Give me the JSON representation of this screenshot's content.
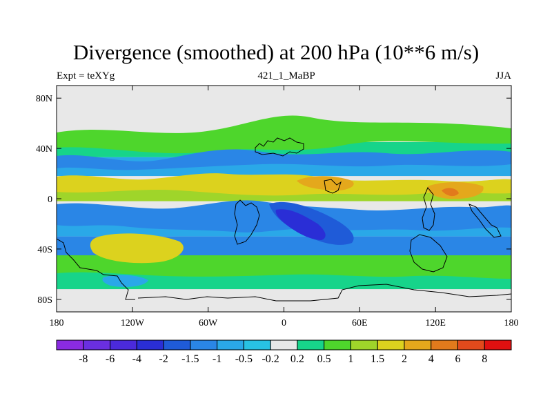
{
  "title": "Divergence (smoothed) at 200 hPa (10**6 m/s)",
  "subtitle_left": "Expt = teXYg",
  "subtitle_center": "421_1_MaBP",
  "subtitle_right": "JJA",
  "axes": {
    "x_ticks": [
      {
        "label": "180",
        "value": -180
      },
      {
        "label": "120W",
        "value": -120
      },
      {
        "label": "60W",
        "value": -60
      },
      {
        "label": "0",
        "value": 0
      },
      {
        "label": "60E",
        "value": 60
      },
      {
        "label": "120E",
        "value": 120
      },
      {
        "label": "180",
        "value": 180
      }
    ],
    "y_ticks": [
      {
        "label": "80N",
        "value": 80
      },
      {
        "label": "40N",
        "value": 40
      },
      {
        "label": "0",
        "value": 0
      },
      {
        "label": "40S",
        "value": -40
      },
      {
        "label": "80S",
        "value": -80
      }
    ],
    "lon_range": [
      -180,
      180
    ],
    "lat_range": [
      -90,
      90
    ]
  },
  "colorbar": {
    "colors": [
      "#8a2be2",
      "#6a2fe0",
      "#4b2adb",
      "#2a2ed6",
      "#1f5bd8",
      "#2a86e6",
      "#2aa8e8",
      "#28c2e3",
      "#e8e8e8",
      "#17d48a",
      "#4ed62c",
      "#9fd52a",
      "#dcd21e",
      "#e4a81c",
      "#e27a1c",
      "#e24a1c",
      "#e01010"
    ],
    "labels": [
      "-8",
      "-6",
      "-4",
      "-2",
      "-1.5",
      "-1",
      "-0.5",
      "-0.2",
      "0.2",
      "0.5",
      "1",
      "1.5",
      "2",
      "4",
      "6",
      "8"
    ]
  },
  "field_bands": [
    {
      "lat": 80,
      "color": "#e8e8e8"
    },
    {
      "lat": 55,
      "color": "#e8e8e8"
    },
    {
      "lat": 45,
      "color": "#17d48a"
    },
    {
      "lat": 33,
      "color": "#2aa8e8"
    },
    {
      "lat": 18,
      "color": "#e8e8e8"
    },
    {
      "lat": 8,
      "color": "#9fd52a"
    },
    {
      "lat": -2,
      "color": "#e8e8e8"
    },
    {
      "lat": -15,
      "color": "#2aa8e8"
    },
    {
      "lat": -30,
      "color": "#2a86e6"
    },
    {
      "lat": -45,
      "color": "#4ed62c"
    },
    {
      "lat": -58,
      "color": "#17d48a"
    },
    {
      "lat": -72,
      "color": "#e8e8e8"
    }
  ]
}
